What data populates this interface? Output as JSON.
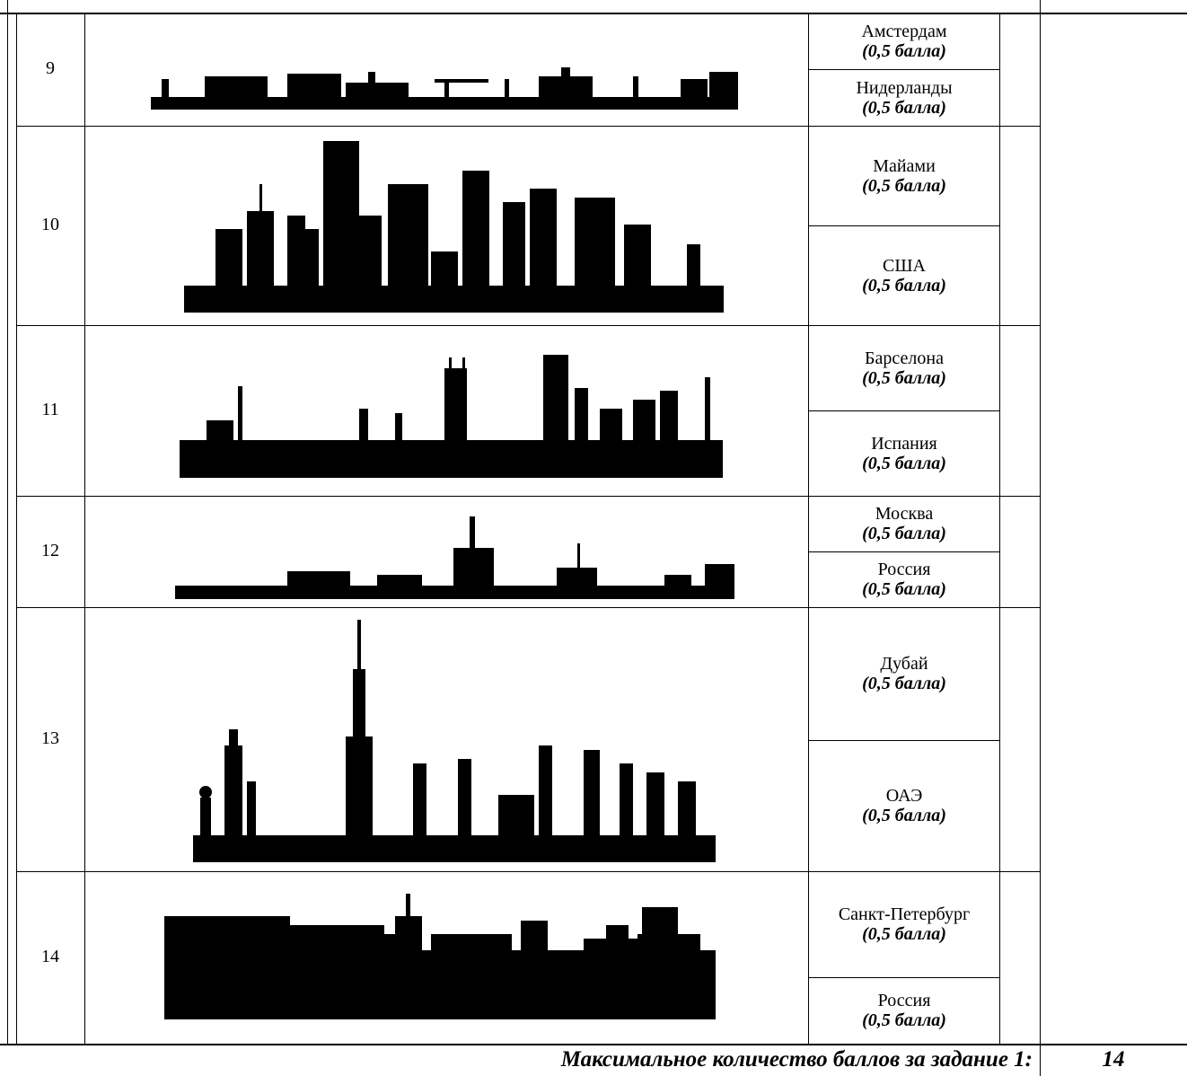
{
  "table": {
    "rows": [
      {
        "number": "9",
        "answers": [
          {
            "name": "Амстердам",
            "points": "(0,5 балла)"
          },
          {
            "name": "Нидерланды",
            "points": "(0,5 балла)"
          }
        ]
      },
      {
        "number": "10",
        "answers": [
          {
            "name": "Майами",
            "points": "(0,5 балла)"
          },
          {
            "name": "США",
            "points": "(0,5 балла)"
          }
        ]
      },
      {
        "number": "11",
        "answers": [
          {
            "name": "Барселона",
            "points": "(0,5 балла)"
          },
          {
            "name": "Испания",
            "points": "(0,5 балла)"
          }
        ]
      },
      {
        "number": "12",
        "answers": [
          {
            "name": "Москва",
            "points": "(0,5 балла)"
          },
          {
            "name": "Россия",
            "points": "(0,5 балла)"
          }
        ]
      },
      {
        "number": "13",
        "answers": [
          {
            "name": "Дубай",
            "points": "(0,5 балла)"
          },
          {
            "name": "ОАЭ",
            "points": "(0,5 балла)"
          }
        ]
      },
      {
        "number": "14",
        "answers": [
          {
            "name": "Санкт-Петербург",
            "points": "(0,5 балла)"
          },
          {
            "name": "Россия",
            "points": "(0,5 балла)"
          }
        ]
      }
    ]
  },
  "footer": {
    "label": "Максимальное количество баллов за задание 1:",
    "total": "14"
  }
}
